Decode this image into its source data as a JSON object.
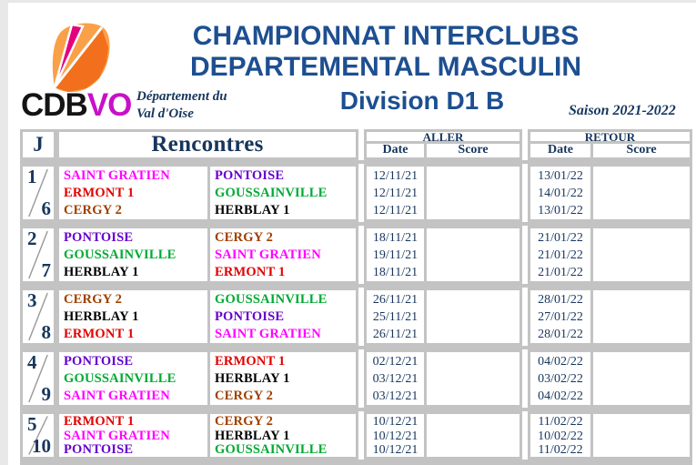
{
  "window": {
    "background": "#FFFFFF",
    "edge_color": "#E8E8E8"
  },
  "header": {
    "logo_cdb": "CDB",
    "logo_vo": "VO",
    "department_line1": "Département du",
    "department_line2": "Val d'Oise",
    "title_line1": "CHAMPIONNAT INTERCLUBS",
    "title_line2": "DEPARTEMENTAL MASCULIN",
    "division": "Division D1 B",
    "season": "Saison 2021-2022"
  },
  "colors": {
    "table_text_navy": "#17365D",
    "title_blue": "#1D4F91",
    "grid_border": "#C3C3C3",
    "logo_orange": "#F9A048",
    "logo_deep_orange": "#F2701D",
    "logo_magenta": "#E5007E",
    "logo_vo_magenta": "#C711C7"
  },
  "table": {
    "j_header": "J",
    "rencontres_header": "Rencontres",
    "aller_label": "ALLER",
    "retour_label": "RETOUR",
    "date_label": "Date",
    "score_label": "Score",
    "team_colors": {
      "SAINT GRATIEN": "#FF00FF",
      "ERMONT 1": "#E00000",
      "CERGY 2": "#A04000",
      "PONTOISE": "#6600CC",
      "GOUSSAINVILLE": "#00A933",
      "HERBLAY 1": "#000000"
    },
    "rounds": [
      {
        "j_top": "1",
        "j_bottom": "6",
        "matches": [
          {
            "home": "SAINT GRATIEN",
            "away": "PONTOISE",
            "aller_date": "12/11/21",
            "aller_score": "",
            "retour_date": "13/01/22",
            "retour_score": ""
          },
          {
            "home": "ERMONT 1",
            "away": "GOUSSAINVILLE",
            "aller_date": "12/11/21",
            "aller_score": "",
            "retour_date": "14/01/22",
            "retour_score": ""
          },
          {
            "home": "CERGY 2",
            "away": "HERBLAY 1",
            "aller_date": "12/11/21",
            "aller_score": "",
            "retour_date": "13/01/22",
            "retour_score": ""
          }
        ]
      },
      {
        "j_top": "2",
        "j_bottom": "7",
        "matches": [
          {
            "home": "PONTOISE",
            "away": "CERGY 2",
            "aller_date": "18/11/21",
            "aller_score": "",
            "retour_date": "21/01/22",
            "retour_score": ""
          },
          {
            "home": "GOUSSAINVILLE",
            "away": "SAINT GRATIEN",
            "aller_date": "19/11/21",
            "aller_score": "",
            "retour_date": "21/01/22",
            "retour_score": ""
          },
          {
            "home": "HERBLAY 1",
            "away": "ERMONT 1",
            "aller_date": "18/11/21",
            "aller_score": "",
            "retour_date": "21/01/22",
            "retour_score": ""
          }
        ]
      },
      {
        "j_top": "3",
        "j_bottom": "8",
        "matches": [
          {
            "home": "CERGY 2",
            "away": "GOUSSAINVILLE",
            "aller_date": "26/11/21",
            "aller_score": "",
            "retour_date": "28/01/22",
            "retour_score": ""
          },
          {
            "home": "HERBLAY 1",
            "away": "PONTOISE",
            "aller_date": "25/11/21",
            "aller_score": "",
            "retour_date": "27/01/22",
            "retour_score": ""
          },
          {
            "home": "ERMONT 1",
            "away": "SAINT GRATIEN",
            "aller_date": "26/11/21",
            "aller_score": "",
            "retour_date": "28/01/22",
            "retour_score": ""
          }
        ]
      },
      {
        "j_top": "4",
        "j_bottom": "9",
        "matches": [
          {
            "home": "PONTOISE",
            "away": "ERMONT 1",
            "aller_date": "02/12/21",
            "aller_score": "",
            "retour_date": "04/02/22",
            "retour_score": ""
          },
          {
            "home": "GOUSSAINVILLE",
            "away": "HERBLAY 1",
            "aller_date": "03/12/21",
            "aller_score": "",
            "retour_date": "03/02/22",
            "retour_score": ""
          },
          {
            "home": "SAINT GRATIEN",
            "away": "CERGY 2",
            "aller_date": "03/12/21",
            "aller_score": "",
            "retour_date": "04/02/22",
            "retour_score": ""
          }
        ]
      },
      {
        "j_top": "5",
        "j_bottom": "10",
        "matches": [
          {
            "home": "ERMONT 1",
            "away": "CERGY 2",
            "aller_date": "10/12/21",
            "aller_score": "",
            "retour_date": "11/02/22",
            "retour_score": ""
          },
          {
            "home": "SAINT GRATIEN",
            "away": "HERBLAY 1",
            "aller_date": "10/12/21",
            "aller_score": "",
            "retour_date": "10/02/22",
            "retour_score": ""
          },
          {
            "home": "PONTOISE",
            "away": "GOUSSAINVILLE",
            "aller_date": "10/12/21",
            "aller_score": "",
            "retour_date": "11/02/22",
            "retour_score": ""
          }
        ]
      }
    ]
  }
}
